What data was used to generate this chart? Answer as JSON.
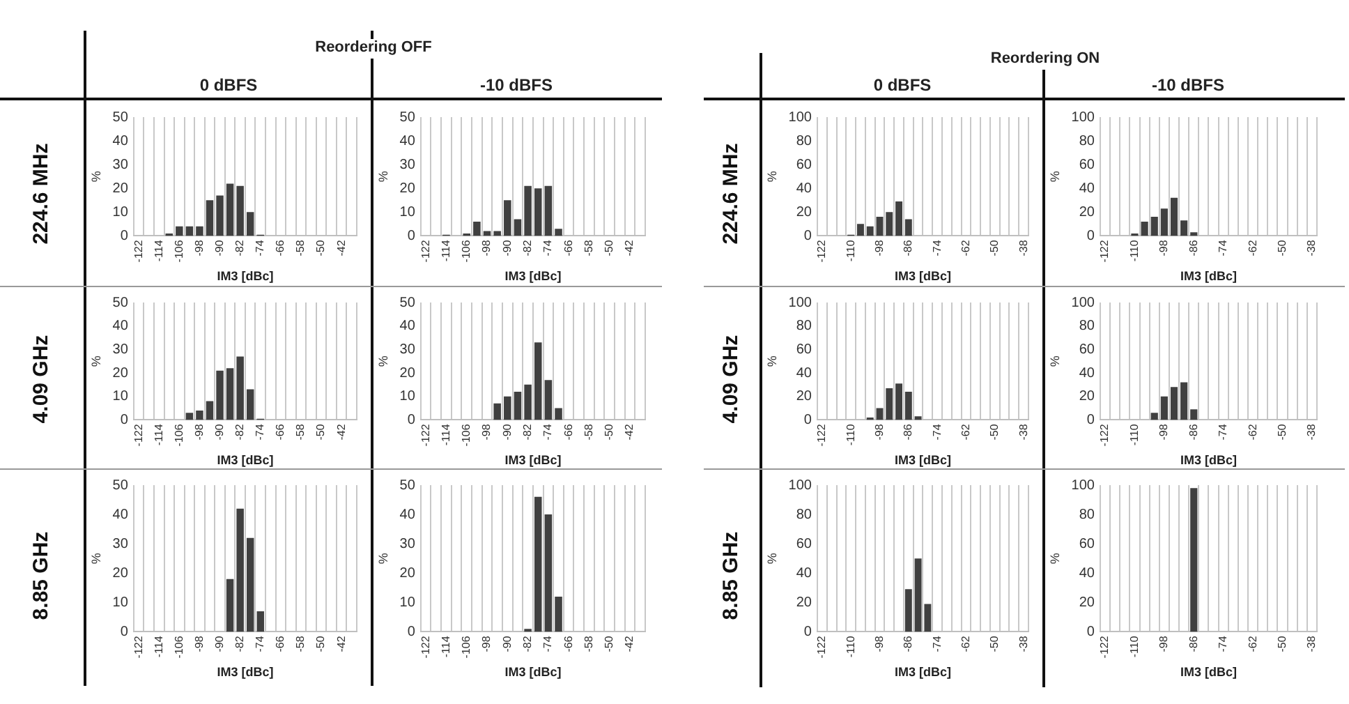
{
  "chart_data": [
    {
      "type": "bar",
      "title": "0 dBFS",
      "annotations": [
        "Reordering OFF",
        "224.6 MHz"
      ],
      "xlabel": "IM3 [dBc]",
      "ylabel": "%",
      "color": "#404040",
      "grid": "x",
      "ylim": [
        0,
        50
      ],
      "yticks": [
        0,
        10,
        20,
        30,
        40,
        50
      ],
      "categories": [
        "-122",
        null,
        "-114",
        null,
        "-106",
        null,
        "-98",
        null,
        "-90",
        null,
        "-82",
        null,
        "-74",
        null,
        "-66",
        null,
        "-58",
        null,
        "-50",
        null,
        "-42",
        null
      ],
      "values": [
        0,
        0,
        0,
        1,
        4,
        4,
        4,
        15,
        17,
        22,
        21,
        10,
        0.5,
        0,
        0,
        0,
        0,
        0,
        0,
        0,
        0,
        0
      ]
    },
    {
      "type": "bar",
      "title": "-10 dBFS",
      "xlabel": "IM3 [dBc]",
      "ylabel": "%",
      "color": "#404040",
      "grid": "x",
      "ylim": [
        0,
        50
      ],
      "yticks": [
        0,
        10,
        20,
        30,
        40,
        50
      ],
      "categories": [
        "-122",
        null,
        "-114",
        null,
        "-106",
        null,
        "-98",
        null,
        "-90",
        null,
        "-82",
        null,
        "-74",
        null,
        "-66",
        null,
        "-58",
        null,
        "-50",
        null,
        "-42",
        null
      ],
      "values": [
        0,
        0,
        0.5,
        0,
        1,
        6,
        2,
        2,
        15,
        7,
        21,
        20,
        21,
        3,
        0,
        0,
        0,
        0,
        0,
        0,
        0,
        0
      ]
    },
    {
      "type": "bar",
      "title": "0 dBFS",
      "annotations": [
        "Reordering ON",
        "224.6 MHz"
      ],
      "xlabel": "IM3 [dBc]",
      "ylabel": "%",
      "color": "#404040",
      "grid": "x",
      "ylim": [
        0,
        100
      ],
      "yticks": [
        0,
        20,
        40,
        60,
        80,
        100
      ],
      "categories": [
        "-122",
        null,
        null,
        "-110",
        null,
        null,
        "-98",
        null,
        null,
        "-86",
        null,
        null,
        "-74",
        null,
        null,
        "-62",
        null,
        null,
        "-50",
        null,
        null,
        "-38"
      ],
      "values": [
        0,
        0,
        0,
        1,
        10,
        8,
        16,
        20,
        29,
        14,
        0,
        0,
        0,
        0,
        0,
        0,
        0,
        0,
        0,
        0,
        0,
        0
      ]
    },
    {
      "type": "bar",
      "title": "-10 dBFS",
      "xlabel": "IM3 [dBc]",
      "ylabel": "%",
      "color": "#404040",
      "grid": "x",
      "ylim": [
        0,
        100
      ],
      "yticks": [
        0,
        20,
        40,
        60,
        80,
        100
      ],
      "categories": [
        "-122",
        null,
        null,
        "-110",
        null,
        null,
        "-98",
        null,
        null,
        "-86",
        null,
        null,
        "-74",
        null,
        null,
        "-62",
        null,
        null,
        "-50",
        null,
        null,
        "-38"
      ],
      "values": [
        0,
        0,
        0,
        2,
        12,
        16,
        23,
        32,
        13,
        3,
        0,
        0,
        0,
        0,
        0,
        0,
        0,
        0,
        0,
        0,
        0,
        0
      ]
    },
    {
      "type": "bar",
      "annotations": [
        "4.09 GHz"
      ],
      "xlabel": "IM3 [dBc]",
      "ylabel": "%",
      "color": "#404040",
      "grid": "x",
      "ylim": [
        0,
        50
      ],
      "yticks": [
        0,
        10,
        20,
        30,
        40,
        50
      ],
      "categories": [
        "-122",
        null,
        "-114",
        null,
        "-106",
        null,
        "-98",
        null,
        "-90",
        null,
        "-82",
        null,
        "-74",
        null,
        "-66",
        null,
        "-58",
        null,
        "-50",
        null,
        "-42",
        null
      ],
      "values": [
        0,
        0,
        0,
        0,
        0,
        3,
        4,
        8,
        21,
        22,
        27,
        13,
        0.5,
        0,
        0,
        0,
        0,
        0,
        0,
        0,
        0,
        0
      ]
    },
    {
      "type": "bar",
      "xlabel": "IM3 [dBc]",
      "ylabel": "%",
      "color": "#404040",
      "grid": "x",
      "ylim": [
        0,
        50
      ],
      "yticks": [
        0,
        10,
        20,
        30,
        40,
        50
      ],
      "categories": [
        "-122",
        null,
        "-114",
        null,
        "-106",
        null,
        "-98",
        null,
        "-90",
        null,
        "-82",
        null,
        "-74",
        null,
        "-66",
        null,
        "-58",
        null,
        "-50",
        null,
        "-42",
        null
      ],
      "values": [
        0,
        0,
        0,
        0,
        0,
        0,
        0,
        7,
        10,
        12,
        15,
        33,
        17,
        5,
        0,
        0,
        0,
        0,
        0,
        0,
        0,
        0
      ]
    },
    {
      "type": "bar",
      "annotations": [
        "4.09 GHz"
      ],
      "xlabel": "IM3 [dBc]",
      "ylabel": "%",
      "color": "#404040",
      "grid": "x",
      "ylim": [
        0,
        100
      ],
      "yticks": [
        0,
        20,
        40,
        60,
        80,
        100
      ],
      "categories": [
        "-122",
        null,
        null,
        "-110",
        null,
        null,
        "-98",
        null,
        null,
        "-86",
        null,
        null,
        "-74",
        null,
        null,
        "-62",
        null,
        null,
        "-50",
        null,
        null,
        "-38"
      ],
      "values": [
        0,
        0,
        0,
        0,
        0,
        2,
        10,
        27,
        31,
        24,
        3,
        0,
        0,
        0,
        0,
        0,
        0,
        0,
        0,
        0,
        0,
        0
      ]
    },
    {
      "type": "bar",
      "xlabel": "IM3 [dBc]",
      "ylabel": "%",
      "color": "#404040",
      "grid": "x",
      "ylim": [
        0,
        100
      ],
      "yticks": [
        0,
        20,
        40,
        60,
        80,
        100
      ],
      "categories": [
        "-122",
        null,
        null,
        "-110",
        null,
        null,
        "-98",
        null,
        null,
        "-86",
        null,
        null,
        "-74",
        null,
        null,
        "-62",
        null,
        null,
        "-50",
        null,
        null,
        "-38"
      ],
      "values": [
        0,
        0,
        0,
        0,
        0,
        6,
        20,
        28,
        32,
        9,
        0,
        0,
        0,
        0,
        0,
        0,
        0,
        0,
        0,
        0,
        0,
        0
      ]
    },
    {
      "type": "bar",
      "annotations": [
        "8.85 GHz"
      ],
      "xlabel": "IM3 [dBc]",
      "ylabel": "%",
      "color": "#404040",
      "grid": "x",
      "ylim": [
        0,
        50
      ],
      "yticks": [
        0,
        10,
        20,
        30,
        40,
        50
      ],
      "categories": [
        "-122",
        null,
        "-114",
        null,
        "-106",
        null,
        "-98",
        null,
        "-90",
        null,
        "-82",
        null,
        "-74",
        null,
        "-66",
        null,
        "-58",
        null,
        "-50",
        null,
        "-42",
        null
      ],
      "values": [
        0,
        0,
        0,
        0,
        0,
        0,
        0,
        0,
        0,
        18,
        42,
        32,
        7,
        0,
        0,
        0,
        0,
        0,
        0,
        0,
        0,
        0
      ]
    },
    {
      "type": "bar",
      "xlabel": "IM3 [dBc]",
      "ylabel": "%",
      "color": "#404040",
      "grid": "x",
      "ylim": [
        0,
        50
      ],
      "yticks": [
        0,
        10,
        20,
        30,
        40,
        50
      ],
      "categories": [
        "-122",
        null,
        "-114",
        null,
        "-106",
        null,
        "-98",
        null,
        "-90",
        null,
        "-82",
        null,
        "-74",
        null,
        "-66",
        null,
        "-58",
        null,
        "-50",
        null,
        "-42",
        null
      ],
      "values": [
        0,
        0,
        0,
        0,
        0,
        0,
        0,
        0,
        0,
        0,
        1,
        46,
        40,
        12,
        0,
        0,
        0,
        0,
        0,
        0,
        0,
        0
      ]
    },
    {
      "type": "bar",
      "annotations": [
        "8.85 GHz"
      ],
      "xlabel": "IM3 [dBc]",
      "ylabel": "%",
      "color": "#404040",
      "grid": "x",
      "ylim": [
        0,
        100
      ],
      "yticks": [
        0,
        20,
        40,
        60,
        80,
        100
      ],
      "categories": [
        "-122",
        null,
        null,
        "-110",
        null,
        null,
        "-98",
        null,
        null,
        "-86",
        null,
        null,
        "-74",
        null,
        null,
        "-62",
        null,
        null,
        "-50",
        null,
        null,
        "-38"
      ],
      "values": [
        0,
        0,
        0,
        0,
        0,
        0,
        0,
        0,
        0,
        29,
        50,
        19,
        0,
        0,
        0,
        0,
        0,
        0,
        0,
        0,
        0,
        0
      ]
    },
    {
      "type": "bar",
      "xlabel": "IM3 [dBc]",
      "ylabel": "%",
      "color": "#404040",
      "grid": "x",
      "ylim": [
        0,
        100
      ],
      "yticks": [
        0,
        20,
        40,
        60,
        80,
        100
      ],
      "categories": [
        "-122",
        null,
        null,
        "-110",
        null,
        null,
        "-98",
        null,
        null,
        "-86",
        null,
        null,
        "-74",
        null,
        null,
        "-62",
        null,
        null,
        "-50",
        null,
        null,
        "-38"
      ],
      "values": [
        0,
        0,
        0,
        0,
        0,
        0,
        0,
        0,
        0,
        98,
        0,
        0,
        0,
        0,
        0,
        0,
        0,
        0,
        0,
        0,
        0,
        0
      ]
    }
  ]
}
